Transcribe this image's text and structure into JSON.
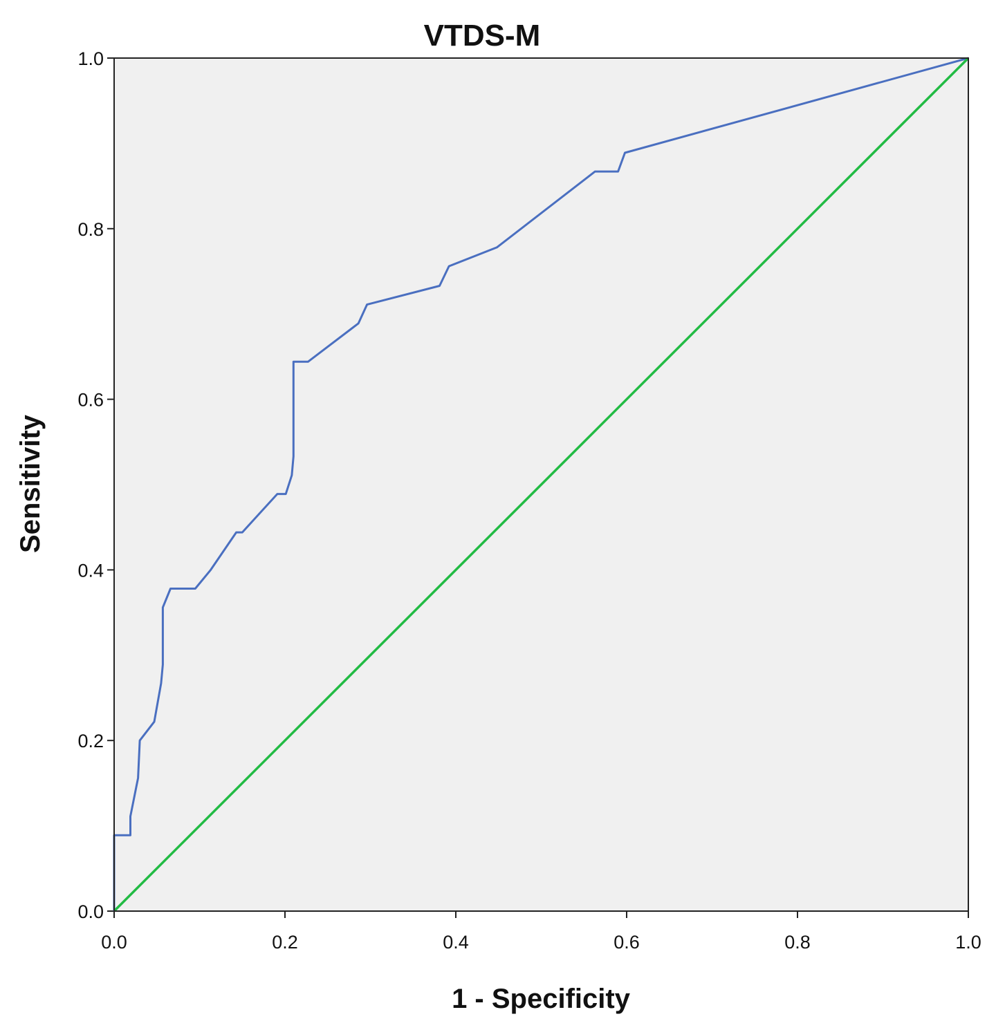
{
  "chart_data": {
    "type": "line",
    "title": "VTDS-M",
    "xlabel": "1 - Specificity",
    "ylabel": "Sensitivity",
    "xlim": [
      0,
      1
    ],
    "ylim": [
      0,
      1
    ],
    "x_ticks": [
      "0.0",
      "0.2",
      "0.4",
      "0.6",
      "0.8",
      "1.0"
    ],
    "y_ticks": [
      "0.0",
      "0.2",
      "0.4",
      "0.6",
      "0.8",
      "1.0"
    ],
    "tick_values": [
      0,
      0.2,
      0.4,
      0.6,
      0.8,
      1.0
    ],
    "grid": false,
    "plot_background": "#f0f0f0",
    "series": [
      {
        "color": "#4a6fc0",
        "x": [
          0,
          0,
          0.019,
          0.019,
          0.028,
          0.03,
          0.047,
          0.055,
          0.057,
          0.057,
          0.066,
          0.095,
          0.113,
          0.143,
          0.15,
          0.191,
          0.201,
          0.208,
          0.21,
          0.21,
          0.227,
          0.286,
          0.296,
          0.381,
          0.392,
          0.448,
          0.563,
          0.59,
          0.598,
          1.0
        ],
        "y": [
          0,
          0.089,
          0.089,
          0.111,
          0.156,
          0.2,
          0.222,
          0.267,
          0.289,
          0.356,
          0.378,
          0.378,
          0.4,
          0.444,
          0.444,
          0.489,
          0.489,
          0.511,
          0.533,
          0.644,
          0.644,
          0.689,
          0.711,
          0.733,
          0.756,
          0.778,
          0.867,
          0.867,
          0.889,
          1.0
        ]
      },
      {
        "color": "#22bb44",
        "x": [
          0,
          1
        ],
        "y": [
          0,
          1
        ]
      }
    ]
  }
}
